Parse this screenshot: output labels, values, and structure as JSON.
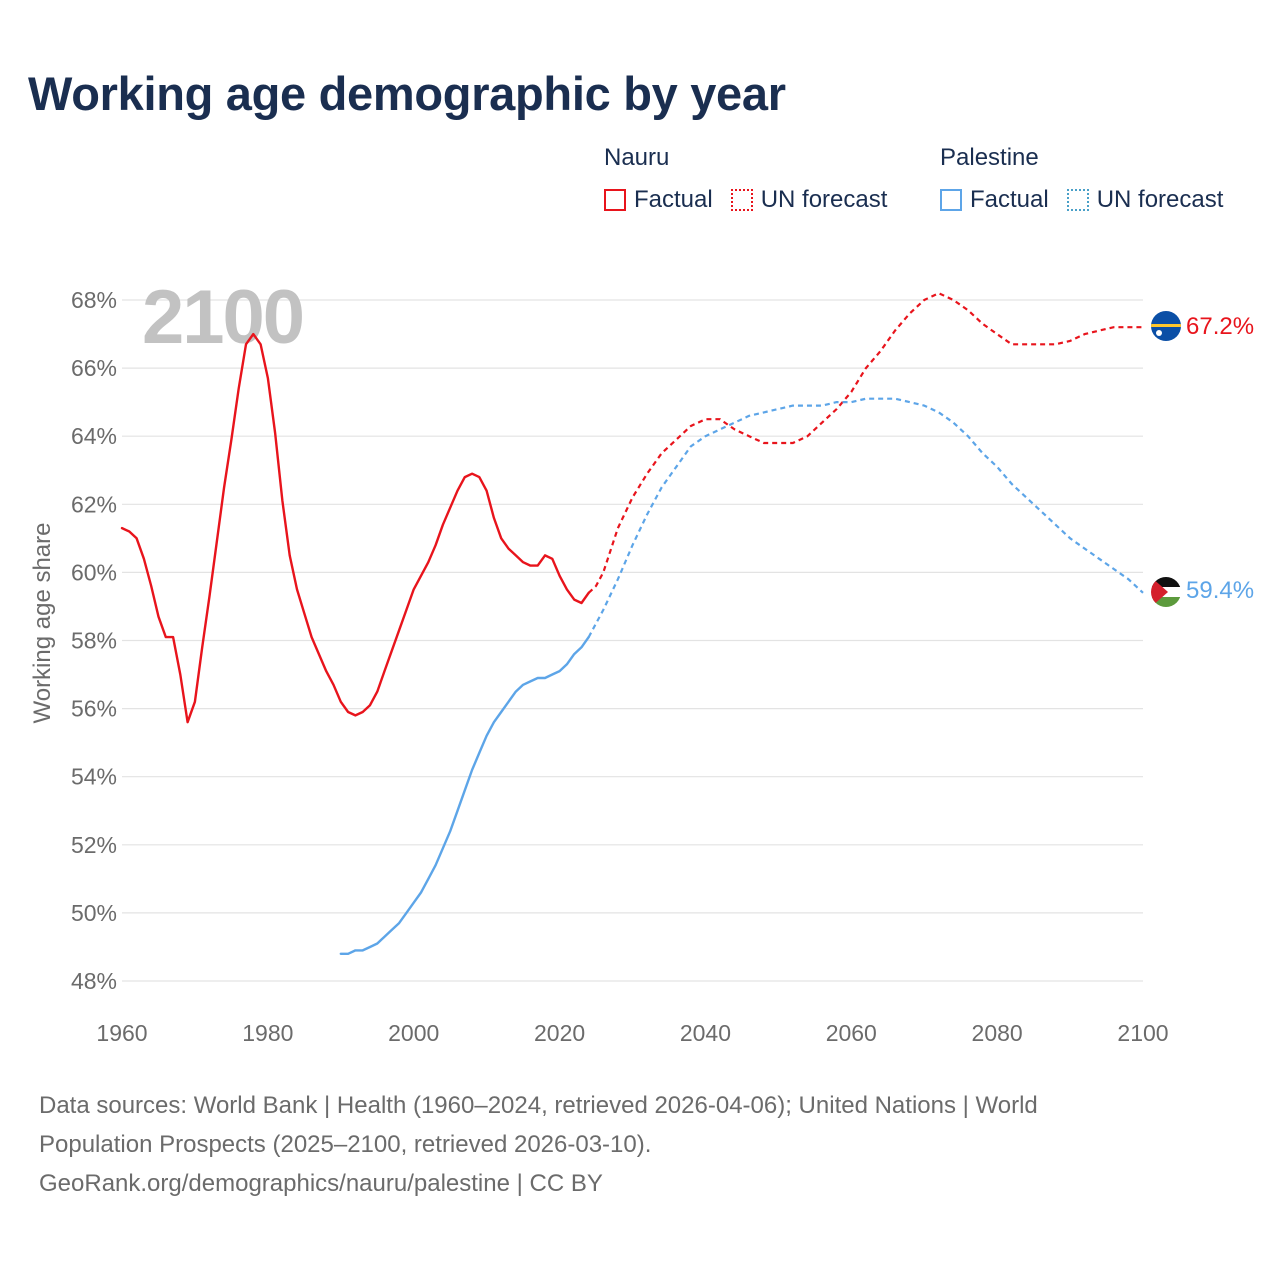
{
  "title": "Working age demographic by year",
  "legend": [
    {
      "country": "Nauru",
      "factual_label": "Factual",
      "forecast_label": "UN forecast",
      "color": "#e8141c"
    },
    {
      "country": "Palestine",
      "factual_label": "Factual",
      "forecast_label": "UN forecast",
      "color": "#5da5e8"
    }
  ],
  "year_watermark": "2100",
  "footer": {
    "line1": "Data sources: World Bank | Health (1960–2024, retrieved 2026-04-06); United Nations | World",
    "line2": "Population Prospects (2025–2100, retrieved 2026-03-10).",
    "line3": "GeoRank.org/demographics/nauru/palestine | CC BY"
  },
  "chart_data": {
    "type": "line",
    "title": "Working age demographic by year",
    "xlabel": "",
    "ylabel": "Working age share",
    "xlim": [
      1960,
      2100
    ],
    "ylim": [
      48,
      68
    ],
    "x_ticks": [
      1960,
      1980,
      2000,
      2020,
      2040,
      2060,
      2080,
      2100
    ],
    "x_tick_labels": [
      "1960",
      "1980",
      "2000",
      "2020",
      "2040",
      "2060",
      "2080",
      "2100"
    ],
    "y_ticks": [
      48,
      50,
      52,
      54,
      56,
      58,
      60,
      62,
      64,
      66,
      68
    ],
    "y_tick_labels": [
      "48%",
      "50%",
      "52%",
      "54%",
      "56%",
      "58%",
      "60%",
      "62%",
      "64%",
      "66%",
      "68%"
    ],
    "grid": true,
    "series": [
      {
        "name": "Nauru",
        "color": "#e8141c",
        "end_label": "67.2%",
        "flag_icon": "nauru-flag-icon",
        "factual": {
          "x": [
            1960,
            1961,
            1962,
            1963,
            1964,
            1965,
            1966,
            1967,
            1968,
            1969,
            1970,
            1971,
            1972,
            1973,
            1974,
            1975,
            1976,
            1977,
            1978,
            1979,
            1980,
            1981,
            1982,
            1983,
            1984,
            1985,
            1986,
            1987,
            1988,
            1989,
            1990,
            1991,
            1992,
            1993,
            1994,
            1995,
            1996,
            1997,
            1998,
            1999,
            2000,
            2001,
            2002,
            2003,
            2004,
            2005,
            2006,
            2007,
            2008,
            2009,
            2010,
            2011,
            2012,
            2013,
            2014,
            2015,
            2016,
            2017,
            2018,
            2019,
            2020,
            2021,
            2022,
            2023,
            2024
          ],
          "y": [
            61.3,
            61.2,
            61.0,
            60.4,
            59.6,
            58.7,
            58.1,
            58.1,
            57.0,
            55.6,
            56.2,
            57.8,
            59.3,
            60.9,
            62.5,
            63.9,
            65.4,
            66.7,
            67.0,
            66.7,
            65.7,
            64.1,
            62.1,
            60.5,
            59.5,
            58.8,
            58.1,
            57.6,
            57.1,
            56.7,
            56.2,
            55.9,
            55.8,
            55.9,
            56.1,
            56.5,
            57.1,
            57.7,
            58.3,
            58.9,
            59.5,
            59.9,
            60.3,
            60.8,
            61.4,
            61.9,
            62.4,
            62.8,
            62.9,
            62.8,
            62.4,
            61.6,
            61.0,
            60.7,
            60.5,
            60.3,
            60.2,
            60.2,
            60.5,
            60.4,
            59.9,
            59.5,
            59.2,
            59.1,
            59.4
          ]
        },
        "forecast": {
          "x": [
            2024,
            2025,
            2026,
            2028,
            2030,
            2032,
            2034,
            2036,
            2038,
            2040,
            2042,
            2044,
            2046,
            2048,
            2050,
            2052,
            2054,
            2056,
            2058,
            2060,
            2062,
            2064,
            2066,
            2068,
            2070,
            2072,
            2074,
            2076,
            2078,
            2080,
            2082,
            2084,
            2086,
            2088,
            2090,
            2092,
            2094,
            2096,
            2098,
            2100
          ],
          "y": [
            59.4,
            59.6,
            60.0,
            61.3,
            62.2,
            62.9,
            63.5,
            63.9,
            64.3,
            64.5,
            64.5,
            64.2,
            64.0,
            63.8,
            63.8,
            63.8,
            64.0,
            64.4,
            64.8,
            65.3,
            66.0,
            66.5,
            67.1,
            67.6,
            68.0,
            68.2,
            68.0,
            67.7,
            67.3,
            67.0,
            66.7,
            66.7,
            66.7,
            66.7,
            66.8,
            67.0,
            67.1,
            67.2,
            67.2,
            67.2
          ]
        }
      },
      {
        "name": "Palestine",
        "color": "#5da5e8",
        "end_label": "59.4%",
        "flag_icon": "palestine-flag-icon",
        "factual": {
          "x": [
            1990,
            1991,
            1992,
            1993,
            1994,
            1995,
            1996,
            1997,
            1998,
            1999,
            2000,
            2001,
            2002,
            2003,
            2004,
            2005,
            2006,
            2007,
            2008,
            2009,
            2010,
            2011,
            2012,
            2013,
            2014,
            2015,
            2016,
            2017,
            2018,
            2019,
            2020,
            2021,
            2022,
            2023,
            2024
          ],
          "y": [
            48.8,
            48.8,
            48.9,
            48.9,
            49.0,
            49.1,
            49.3,
            49.5,
            49.7,
            50.0,
            50.3,
            50.6,
            51.0,
            51.4,
            51.9,
            52.4,
            53.0,
            53.6,
            54.2,
            54.7,
            55.2,
            55.6,
            55.9,
            56.2,
            56.5,
            56.7,
            56.8,
            56.9,
            56.9,
            57.0,
            57.1,
            57.3,
            57.6,
            57.8,
            58.1
          ]
        },
        "forecast": {
          "x": [
            2024,
            2026,
            2028,
            2030,
            2032,
            2034,
            2036,
            2038,
            2040,
            2042,
            2044,
            2046,
            2048,
            2050,
            2052,
            2054,
            2056,
            2058,
            2060,
            2062,
            2064,
            2066,
            2068,
            2070,
            2072,
            2074,
            2076,
            2078,
            2080,
            2082,
            2084,
            2086,
            2088,
            2090,
            2092,
            2094,
            2096,
            2098,
            2100
          ],
          "y": [
            58.1,
            58.9,
            59.8,
            60.8,
            61.7,
            62.5,
            63.1,
            63.7,
            64.0,
            64.2,
            64.4,
            64.6,
            64.7,
            64.8,
            64.9,
            64.9,
            64.9,
            65.0,
            65.0,
            65.1,
            65.1,
            65.1,
            65.0,
            64.9,
            64.7,
            64.4,
            64.0,
            63.5,
            63.1,
            62.6,
            62.2,
            61.8,
            61.4,
            61.0,
            60.7,
            60.4,
            60.1,
            59.8,
            59.4
          ]
        }
      }
    ]
  }
}
